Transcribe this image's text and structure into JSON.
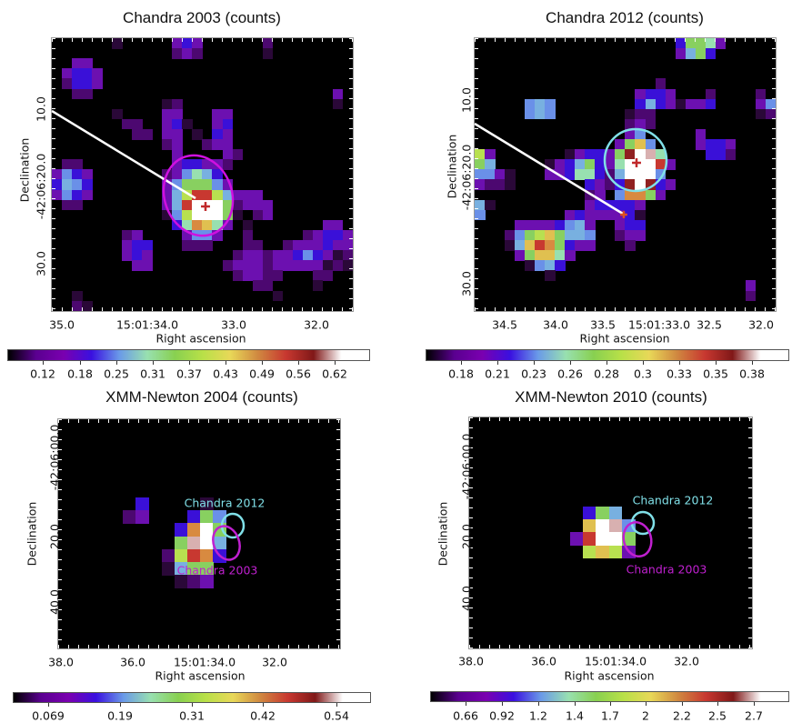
{
  "colormap": {
    "colorbar": [
      "#000000",
      "#5a0090",
      "#7a00b0",
      "#3a10e0",
      "#6a9ae8",
      "#98e0b0",
      "#88d050",
      "#b8e048",
      "#e8d858",
      "#d08840",
      "#c83830",
      "#801818",
      "#ffffff",
      "#ffffff"
    ],
    "levels": {
      "1": "#2a0838",
      "2": "#4c0870",
      "3": "#6c10b0",
      "4": "#3a10d8",
      "5": "#6a90e8",
      "6": "#78b0e0",
      "7": "#98e0b0",
      "8": "#88d060",
      "9": "#b8e050",
      "a": "#e0c050",
      "b": "#d88a40",
      "c": "#c83830",
      "d": "#902020",
      "e": "#ffffff",
      "f": "#d8b0b0"
    }
  },
  "chart_data": [
    {
      "type": "heatmap",
      "title": "Chandra 2003 (counts)",
      "xlabel": "Right ascension",
      "ylabel": "Declination",
      "xticks": [
        "35.0",
        "15:01:34.0",
        "33.0",
        "32.0"
      ],
      "yticks": [
        "10.0",
        "-42:06:20.0",
        "30.0"
      ],
      "colorbar": {
        "ticks": [
          "0.12",
          "0.18",
          "0.25",
          "0.31",
          "0.37",
          "0.43",
          "0.49",
          "0.56",
          "0.62"
        ]
      },
      "contours": [
        {
          "label": "",
          "color": "#d010e0"
        }
      ],
      "line_color": "#ffffff",
      "markers": [
        {
          "shape": "cross",
          "color": "#c0282a"
        }
      ],
      "pixels": [
        [
          0,
          6,
          "1"
        ],
        [
          0,
          12,
          "343"
        ],
        [
          0,
          21,
          "2"
        ],
        [
          1,
          12,
          "232"
        ],
        [
          1,
          21,
          "1"
        ],
        [
          2,
          2,
          "33"
        ],
        [
          3,
          1,
          "3443"
        ],
        [
          4,
          1,
          "2443"
        ],
        [
          5,
          2,
          "22"
        ],
        [
          5,
          28,
          "3"
        ],
        [
          6,
          11,
          "12"
        ],
        [
          6,
          28,
          "1"
        ],
        [
          7,
          6,
          "1"
        ],
        [
          7,
          11,
          "33"
        ],
        [
          7,
          16,
          "33"
        ],
        [
          8,
          7,
          "22"
        ],
        [
          8,
          11,
          "341"
        ],
        [
          8,
          16,
          "34"
        ],
        [
          9,
          8,
          "22"
        ],
        [
          9,
          11,
          "33"
        ],
        [
          9,
          14,
          "1"
        ],
        [
          9,
          16,
          "43"
        ],
        [
          10,
          11,
          "23"
        ],
        [
          10,
          15,
          "233"
        ],
        [
          11,
          12,
          "3"
        ],
        [
          11,
          17,
          "32"
        ],
        [
          12,
          1,
          "22"
        ],
        [
          12,
          12,
          "344332"
        ],
        [
          13,
          0,
          "3543"
        ],
        [
          13,
          11,
          "235764"
        ],
        [
          14,
          0,
          "4654"
        ],
        [
          14,
          11,
          "3588853"
        ],
        [
          15,
          0,
          "3543"
        ],
        [
          15,
          11,
          "369cc963"
        ],
        [
          15,
          19,
          "33"
        ],
        [
          16,
          1,
          "22"
        ],
        [
          16,
          11,
          "36ceee82"
        ],
        [
          16,
          19,
          "333"
        ],
        [
          17,
          11,
          "159eee81"
        ],
        [
          17,
          20,
          "23"
        ],
        [
          18,
          12,
          "47ba73"
        ],
        [
          18,
          19,
          "1"
        ],
        [
          18,
          27,
          "33"
        ],
        [
          19,
          7,
          "23"
        ],
        [
          19,
          13,
          "3553"
        ],
        [
          19,
          19,
          "2"
        ],
        [
          19,
          25,
          "23443"
        ],
        [
          20,
          7,
          "344"
        ],
        [
          20,
          13,
          "222"
        ],
        [
          20,
          19,
          "22"
        ],
        [
          20,
          23,
          "2333433"
        ],
        [
          21,
          7,
          "343"
        ],
        [
          21,
          18,
          "233233454312"
        ],
        [
          22,
          8,
          "33"
        ],
        [
          22,
          17,
          "2333233333121"
        ],
        [
          23,
          18,
          "23322"
        ],
        [
          23,
          26,
          "22"
        ],
        [
          24,
          20,
          "22"
        ],
        [
          24,
          26,
          "1"
        ],
        [
          25,
          2,
          "1"
        ],
        [
          25,
          22,
          "1"
        ],
        [
          26,
          2,
          "21"
        ]
      ]
    },
    {
      "type": "heatmap",
      "title": "Chandra 2012 (counts)",
      "xlabel": "Right ascension",
      "ylabel": "Declination",
      "xticks": [
        "34.5",
        "34.0",
        "33.5",
        "15:01:33.0",
        "32.5",
        "32.0"
      ],
      "yticks": [
        "10.0",
        "-42:06:20.0",
        "30.0"
      ],
      "colorbar": {
        "ticks": [
          "0.18",
          "0.21",
          "0.23",
          "0.26",
          "0.28",
          "0.3",
          "0.33",
          "0.35",
          "0.38"
        ]
      },
      "contours": [
        {
          "label": "",
          "color": "#80e0e8"
        }
      ],
      "line_color": "#ffffff",
      "markers": [
        {
          "shape": "cross",
          "color": "#c0282a"
        },
        {
          "shape": "cross",
          "color": "#e05020"
        }
      ],
      "pixels": [
        [
          0,
          20,
          "48873"
        ],
        [
          1,
          20,
          "3684"
        ],
        [
          4,
          18,
          "2"
        ],
        [
          5,
          16,
          "3443"
        ],
        [
          5,
          23,
          "2"
        ],
        [
          5,
          28,
          "2"
        ],
        [
          6,
          5,
          "565"
        ],
        [
          6,
          16,
          "46431334"
        ],
        [
          6,
          28,
          "35"
        ],
        [
          7,
          5,
          "565"
        ],
        [
          7,
          15,
          "122"
        ],
        [
          7,
          28,
          "12"
        ],
        [
          8,
          15,
          "232"
        ],
        [
          9,
          15,
          "35"
        ],
        [
          9,
          22,
          "3"
        ],
        [
          10,
          14,
          "38a5"
        ],
        [
          10,
          22,
          "3443"
        ],
        [
          11,
          0,
          "93"
        ],
        [
          11,
          9,
          "1344"
        ],
        [
          11,
          13,
          "38def7"
        ],
        [
          11,
          23,
          "442"
        ],
        [
          12,
          0,
          "86"
        ],
        [
          12,
          7,
          "134684"
        ],
        [
          12,
          13,
          "37eeec3"
        ],
        [
          13,
          0,
          "5531"
        ],
        [
          13,
          7,
          "334774"
        ],
        [
          13,
          13,
          "26eee5"
        ],
        [
          14,
          0,
          "3221"
        ],
        [
          14,
          11,
          "43"
        ],
        [
          14,
          13,
          "24ded43"
        ],
        [
          15,
          11,
          "23"
        ],
        [
          15,
          14,
          "5bb83"
        ],
        [
          16,
          0,
          "61"
        ],
        [
          16,
          11,
          "3444"
        ],
        [
          16,
          15,
          "43"
        ],
        [
          17,
          0,
          "5"
        ],
        [
          17,
          9,
          "34333341"
        ],
        [
          18,
          4,
          "3333456"
        ],
        [
          18,
          11,
          "3"
        ],
        [
          18,
          14,
          "344"
        ],
        [
          19,
          3,
          "2589a8665"
        ],
        [
          19,
          14,
          "233"
        ],
        [
          20,
          3,
          "16acb8433"
        ],
        [
          20,
          15,
          "2"
        ],
        [
          21,
          4,
          "38aa73"
        ],
        [
          22,
          5,
          "1564"
        ],
        [
          23,
          7,
          "1"
        ],
        [
          24,
          27,
          "3"
        ],
        [
          25,
          27,
          "2"
        ]
      ]
    },
    {
      "type": "heatmap",
      "title": "XMM-Newton 2004 (counts)",
      "xlabel": "Right ascension",
      "ylabel": "Declination",
      "xticks": [
        "38.0",
        "36.0",
        "15:01:34.0",
        "32.0"
      ],
      "yticks": [
        "-42:06:00.0",
        "20.0",
        "40.0"
      ],
      "colorbar": {
        "ticks": [
          "0.069",
          "0.19",
          "0.31",
          "0.42",
          "0.54"
        ]
      },
      "contours": [
        {
          "label": "Chandra 2012",
          "color": "#80e0e8"
        },
        {
          "label": "Chandra 2003",
          "color": "#c020d0"
        }
      ],
      "markers": [],
      "pixels": [
        [
          0,
          1,
          "4"
        ],
        [
          0,
          6,
          "1"
        ],
        [
          1,
          0,
          "23"
        ],
        [
          1,
          5,
          "485"
        ],
        [
          2,
          4,
          "4be8"
        ],
        [
          3,
          4,
          "8fe6"
        ],
        [
          4,
          3,
          "29cb4"
        ],
        [
          5,
          3,
          "1688"
        ],
        [
          6,
          4,
          "123"
        ]
      ]
    },
    {
      "type": "heatmap",
      "title": "XMM-Newton 2010 (counts)",
      "xlabel": "Right ascension",
      "ylabel": "Declination",
      "xticks": [
        "38.0",
        "36.0",
        "15:01:34.0",
        "32.0"
      ],
      "yticks": [
        "-42:06:00.0",
        "20.0",
        "40.0"
      ],
      "colorbar": {
        "ticks": [
          "0.66",
          "0.92",
          "1.2",
          "1.4",
          "1.7",
          "2",
          "2.2",
          "2.5",
          "2.7"
        ]
      },
      "contours": [
        {
          "label": "Chandra 2012",
          "color": "#80e0e8"
        },
        {
          "label": "Chandra 2003",
          "color": "#c020d0"
        }
      ],
      "markers": [],
      "pixels": [
        [
          0,
          1,
          "486"
        ],
        [
          1,
          1,
          "aef5"
        ],
        [
          2,
          0,
          "3cee8"
        ],
        [
          3,
          1,
          "9a93"
        ]
      ]
    }
  ]
}
